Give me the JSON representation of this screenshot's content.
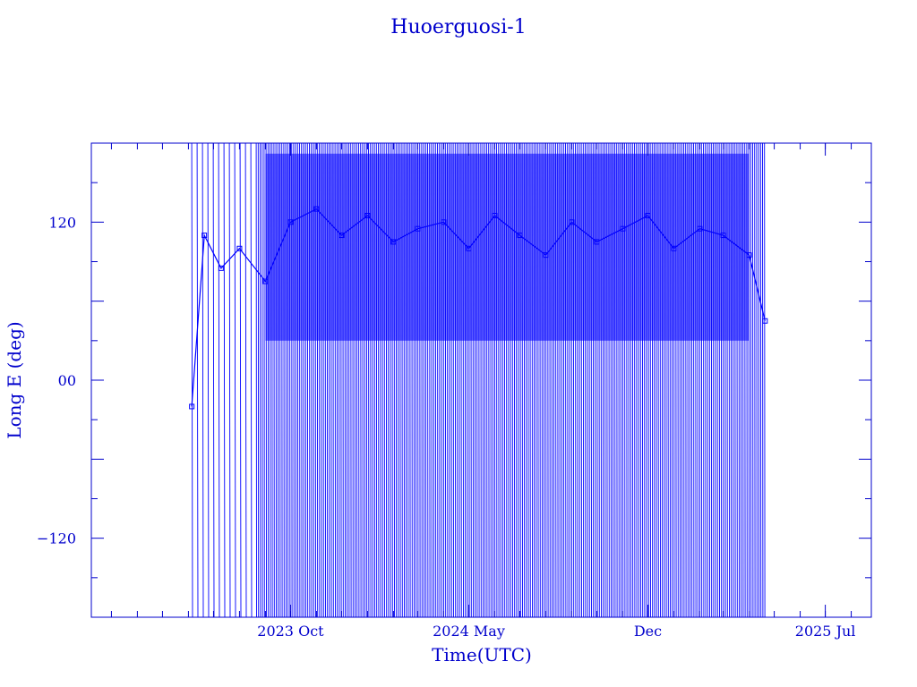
{
  "chart_data": {
    "type": "line",
    "title": "Huoerguosi-1",
    "xlabel": "Time(UTC)",
    "ylabel": "Long E (deg)",
    "x_range": [
      "2023-02-05",
      "2025-08-25"
    ],
    "ylim": [
      -180,
      180
    ],
    "x_ticks": [
      {
        "date": "2023-10-01",
        "label": "2023 Oct"
      },
      {
        "date": "2024-05-01",
        "label": "2024 May"
      },
      {
        "date": "2024-12-01",
        "label": "Dec"
      },
      {
        "date": "2025-07-01",
        "label": "2025 Jul"
      }
    ],
    "y_ticks": [
      {
        "value": 120,
        "label": "120"
      },
      {
        "value": 0,
        "label": "00"
      },
      {
        "value": -120,
        "label": "−120"
      }
    ],
    "grid": false,
    "colors": {
      "series": "#0000ff",
      "axes": "#0000cc"
    },
    "series": [
      {
        "values_note_free": true,
        "x": [
          "2023-06-05",
          "2023-06-20",
          "2023-07-10",
          "2023-08-01",
          "2023-09-01",
          "2023-10-01",
          "2023-11-01",
          "2023-12-01",
          "2024-01-01",
          "2024-02-01",
          "2024-03-01",
          "2024-04-01",
          "2024-05-01",
          "2024-06-01",
          "2024-07-01",
          "2024-08-01",
          "2024-09-01",
          "2024-10-01",
          "2024-11-01",
          "2024-12-01",
          "2025-01-01",
          "2025-02-01",
          "2025-03-01",
          "2025-04-01",
          "2025-04-20"
        ],
        "y": [
          -20,
          110,
          85,
          100,
          75,
          120,
          130,
          110,
          125,
          105,
          115,
          120,
          100,
          125,
          110,
          95,
          120,
          105,
          115,
          125,
          100,
          115,
          110,
          95,
          45
        ]
      }
    ]
  }
}
